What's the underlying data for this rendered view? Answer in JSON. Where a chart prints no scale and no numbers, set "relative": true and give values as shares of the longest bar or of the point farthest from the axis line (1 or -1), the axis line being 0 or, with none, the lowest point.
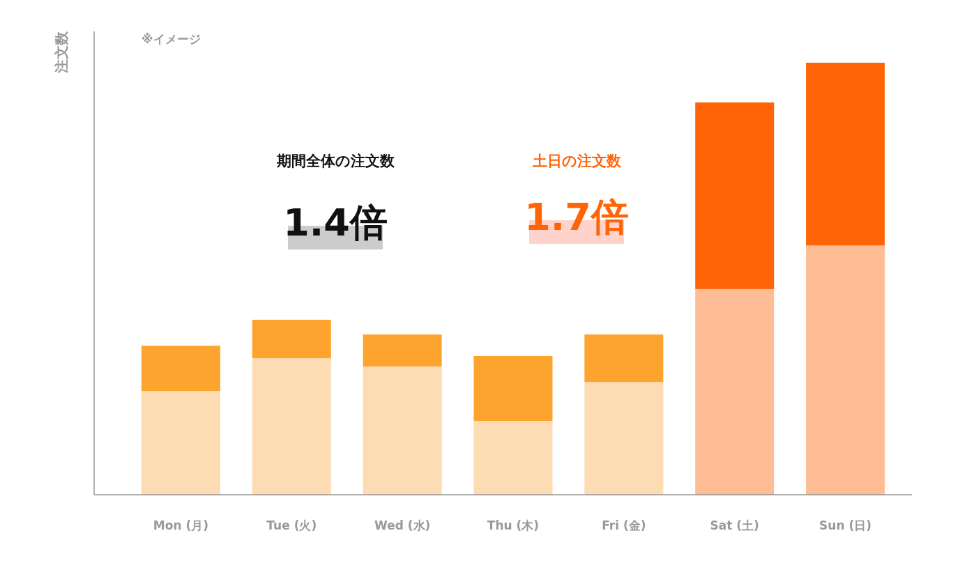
{
  "chart_data": {
    "type": "bar",
    "stacked": true,
    "relative": true,
    "ylabel": "注文数",
    "categories": [
      "Mon (月)",
      "Tue (火)",
      "Wed (水)",
      "Thu (木)",
      "Fri (金)",
      "Sat (土)",
      "Sun (日)"
    ],
    "series": [
      {
        "colors": [
          "#fddcb3",
          "#fddcb3",
          "#fddcb3",
          "#fddcb3",
          "#fddcb3",
          "#febd94",
          "#febd94"
        ],
        "values": [
          0.24,
          0.316,
          0.297,
          0.171,
          0.261,
          0.476,
          0.577
        ]
      },
      {
        "colors": [
          "#fda42f",
          "#fda42f",
          "#fda42f",
          "#fda42f",
          "#fda42f",
          "#ff6506",
          "#ff6506"
        ],
        "values": [
          0.105,
          0.089,
          0.074,
          0.15,
          0.11,
          0.432,
          0.423
        ]
      }
    ],
    "annotations": [
      "※イメージ",
      "期間全体の注文数",
      "1.4倍",
      "土日の注文数",
      "1.7倍"
    ],
    "grid": false
  }
}
